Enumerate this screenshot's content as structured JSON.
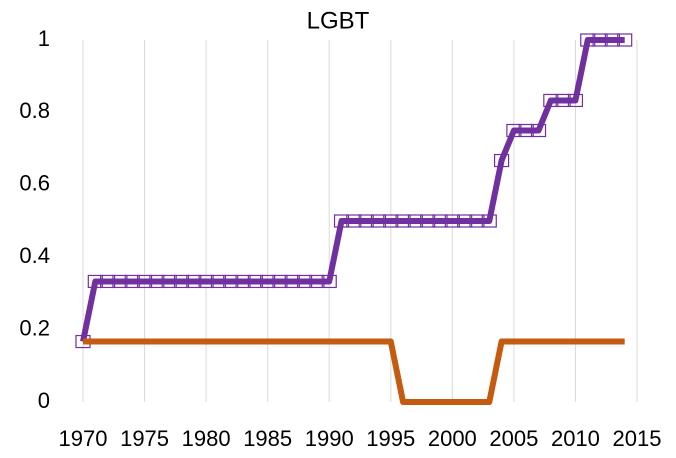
{
  "chart_data": {
    "type": "line",
    "title": "LGBT",
    "x": [
      1970,
      1971,
      1972,
      1973,
      1974,
      1975,
      1976,
      1977,
      1978,
      1979,
      1980,
      1981,
      1982,
      1983,
      1984,
      1985,
      1986,
      1987,
      1988,
      1989,
      1990,
      1991,
      1992,
      1993,
      1994,
      1995,
      1996,
      1997,
      1998,
      1999,
      2000,
      2001,
      2002,
      2003,
      2004,
      2005,
      2006,
      2007,
      2008,
      2009,
      2010,
      2011,
      2012,
      2013,
      2014
    ],
    "series": [
      {
        "color": "#7030a0",
        "marker": "square",
        "values": [
          0.167,
          0.333,
          0.333,
          0.333,
          0.333,
          0.333,
          0.333,
          0.333,
          0.333,
          0.333,
          0.333,
          0.333,
          0.333,
          0.333,
          0.333,
          0.333,
          0.333,
          0.333,
          0.333,
          0.333,
          0.333,
          0.5,
          0.5,
          0.5,
          0.5,
          0.5,
          0.5,
          0.5,
          0.5,
          0.5,
          0.5,
          0.5,
          0.5,
          0.5,
          0.667,
          0.75,
          0.75,
          0.75,
          0.833,
          0.833,
          0.833,
          1,
          1,
          1,
          1
        ]
      },
      {
        "color": "#c55a11",
        "marker": "none",
        "values": [
          0.167,
          0.167,
          0.167,
          0.167,
          0.167,
          0.167,
          0.167,
          0.167,
          0.167,
          0.167,
          0.167,
          0.167,
          0.167,
          0.167,
          0.167,
          0.167,
          0.167,
          0.167,
          0.167,
          0.167,
          0.167,
          0.167,
          0.167,
          0.167,
          0.167,
          0.167,
          0,
          0,
          0,
          0,
          0,
          0,
          0,
          0,
          0.167,
          0.167,
          0.167,
          0.167,
          0.167,
          0.167,
          0.167,
          0.167,
          0.167,
          0.167,
          0.167
        ]
      }
    ],
    "xlim": [
      1970,
      2015
    ],
    "xticks": [
      1970,
      1975,
      1980,
      1985,
      1990,
      1995,
      2000,
      2005,
      2010,
      2015
    ],
    "ylim": [
      0,
      1
    ],
    "yticks": [
      0,
      0.2,
      0.4,
      0.6,
      0.8,
      1
    ],
    "grid": "x"
  }
}
